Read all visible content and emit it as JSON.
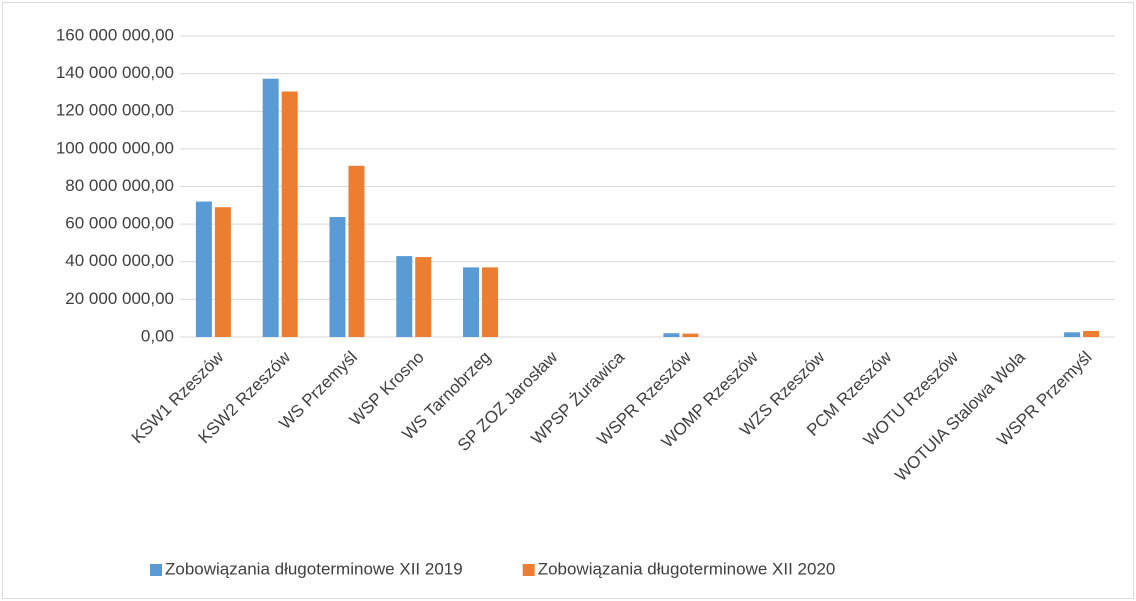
{
  "chart_data": {
    "type": "bar",
    "categories": [
      "KSW1 Rzeszów",
      "KSW2 Rzeszów",
      "WS Przemyśl",
      "WSP Krosno",
      "WS Tarnobrzeg",
      "SP ZOZ Jarosław",
      "WPSP Żurawica",
      "WSPR Rzeszów",
      "WOMP Rzeszów",
      "WZS Rzeszów",
      "PCM Rzeszów",
      "WOTU Rzeszów",
      "WOTUIA Stalowa Wola",
      "WSPR Przemyśl"
    ],
    "series": [
      {
        "name": "Zobowiązania długoterminowe XII 2019",
        "color": "#5b9bd5",
        "values": [
          72000000,
          137300000,
          63800000,
          43000000,
          37000000,
          0,
          0,
          2000000,
          0,
          0,
          0,
          0,
          0,
          2500000
        ]
      },
      {
        "name": "Zobowiązania długoterminowe XII 2020",
        "color": "#ed7d31",
        "values": [
          69000000,
          130500000,
          91000000,
          42500000,
          37000000,
          0,
          0,
          1800000,
          0,
          0,
          0,
          0,
          0,
          3200000
        ]
      }
    ],
    "ylim": [
      0,
      160000000
    ],
    "yticks": [
      {
        "value": 0,
        "label": "0,00"
      },
      {
        "value": 20000000,
        "label": "20 000 000,00"
      },
      {
        "value": 40000000,
        "label": "40 000 000,00"
      },
      {
        "value": 60000000,
        "label": "60 000 000,00"
      },
      {
        "value": 80000000,
        "label": "80 000 000,00"
      },
      {
        "value": 100000000,
        "label": "100 000 000,00"
      },
      {
        "value": 120000000,
        "label": "120 000 000,00"
      },
      {
        "value": 140000000,
        "label": "140 000 000,00"
      },
      {
        "value": 160000000,
        "label": "160 000 000,00"
      }
    ],
    "grid": true,
    "legend": "bottom"
  }
}
